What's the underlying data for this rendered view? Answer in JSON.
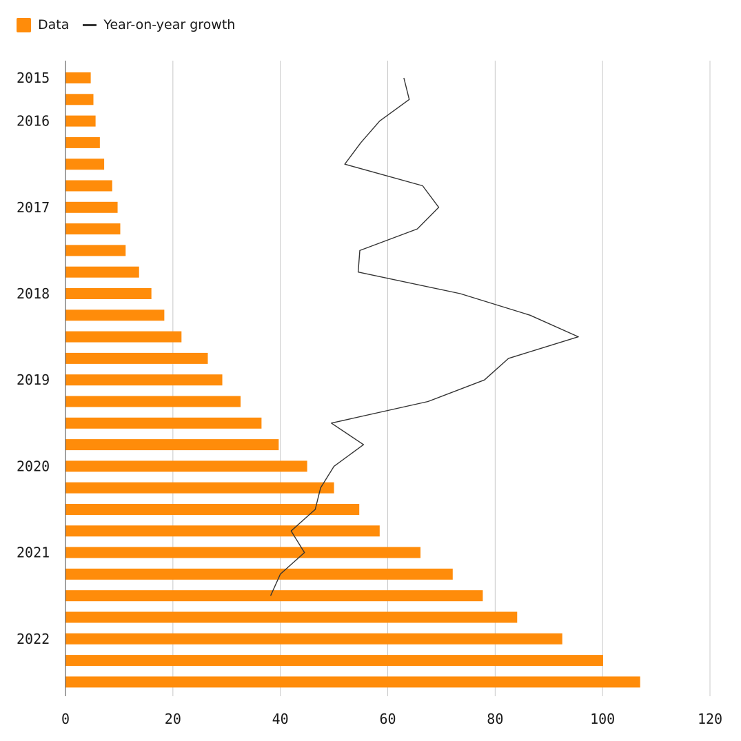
{
  "chart_data": {
    "type": "bar",
    "orientation": "horizontal",
    "legend": [
      {
        "label": "Data",
        "marker": "box"
      },
      {
        "label": "Year-on-year growth",
        "marker": "line"
      }
    ],
    "series": [
      {
        "name": "Data",
        "type": "bar",
        "color": "#ff8c0a",
        "values": [
          4.7,
          5.2,
          5.6,
          6.4,
          7.2,
          8.7,
          9.7,
          10.2,
          11.2,
          13.7,
          16.0,
          18.4,
          21.6,
          26.5,
          29.2,
          32.6,
          36.5,
          39.7,
          45.0,
          50.0,
          54.7,
          58.5,
          66.1,
          72.1,
          77.7,
          84.1,
          92.5,
          100.1,
          107.0
        ]
      },
      {
        "name": "Year-on-year growth",
        "type": "line",
        "color": "#333333",
        "values": [
          63.0,
          64.0,
          58.5,
          55.0,
          52.0,
          66.5,
          69.5,
          65.5,
          54.8,
          54.5,
          73.5,
          86.5,
          95.5,
          82.5,
          78.0,
          67.5,
          49.5,
          55.5,
          50.0,
          47.5,
          46.5,
          42.0,
          44.5,
          40.0,
          38.2
        ]
      }
    ],
    "category_count": 29,
    "y_tick_labels": [
      {
        "label": "2015",
        "index": 0
      },
      {
        "label": "2016",
        "index": 2
      },
      {
        "label": "2017",
        "index": 6
      },
      {
        "label": "2018",
        "index": 10
      },
      {
        "label": "2019",
        "index": 14
      },
      {
        "label": "2020",
        "index": 18
      },
      {
        "label": "2021",
        "index": 22
      },
      {
        "label": "2022",
        "index": 26
      }
    ],
    "x_ticks": [
      0,
      20,
      40,
      60,
      80,
      100,
      120
    ],
    "xlim": [
      0,
      120
    ],
    "grid": "vertical",
    "legend_position": "top-left"
  }
}
